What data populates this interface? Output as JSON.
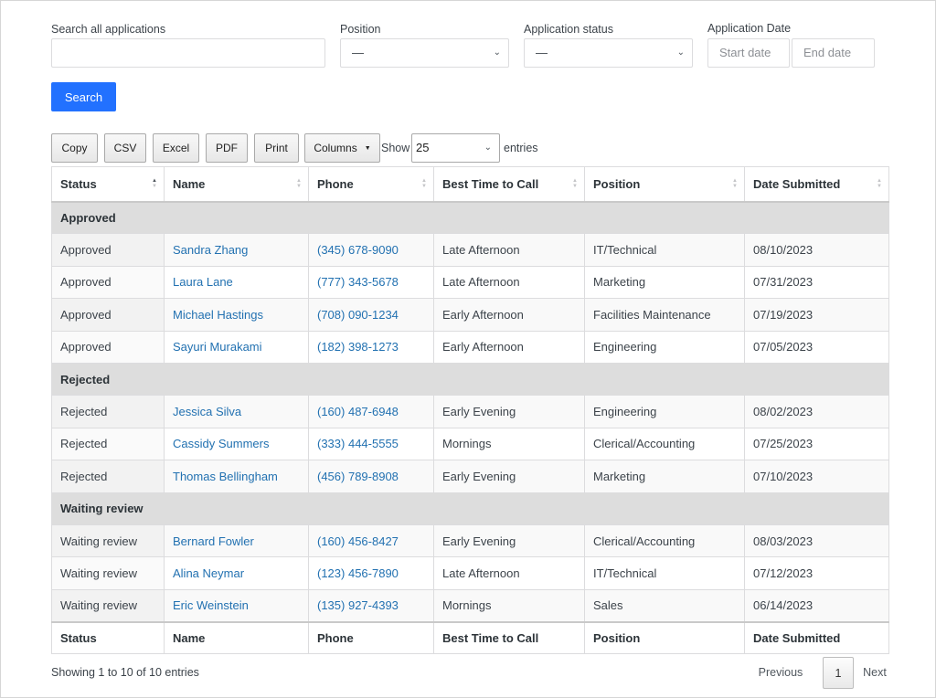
{
  "filters": {
    "search_label": "Search all applications",
    "search_value": "",
    "position_label": "Position",
    "position_value": "—",
    "status_label": "Application status",
    "status_value": "—",
    "date_label": "Application Date",
    "start_placeholder": "Start date",
    "end_placeholder": "End date",
    "search_button": "Search"
  },
  "toolbar": {
    "copy": "Copy",
    "csv": "CSV",
    "excel": "Excel",
    "pdf": "PDF",
    "print": "Print",
    "columns": "Columns",
    "show_label": "Show",
    "page_length": "25",
    "entries_label": "entries"
  },
  "table": {
    "columns": [
      "Status",
      "Name",
      "Phone",
      "Best Time to Call",
      "Position",
      "Date Submitted"
    ],
    "groups": [
      {
        "label": "Approved",
        "rows": [
          [
            "Approved",
            "Sandra Zhang",
            "(345) 678-9090",
            "Late Afternoon",
            "IT/Technical",
            "08/10/2023"
          ],
          [
            "Approved",
            "Laura Lane",
            "(777) 343-5678",
            "Late Afternoon",
            "Marketing",
            "07/31/2023"
          ],
          [
            "Approved",
            "Michael Hastings",
            "(708) 090-1234",
            "Early Afternoon",
            "Facilities Maintenance",
            "07/19/2023"
          ],
          [
            "Approved",
            "Sayuri Murakami",
            "(182) 398-1273",
            "Early Afternoon",
            "Engineering",
            "07/05/2023"
          ]
        ]
      },
      {
        "label": "Rejected",
        "rows": [
          [
            "Rejected",
            "Jessica Silva",
            "(160) 487-6948",
            "Early Evening",
            "Engineering",
            "08/02/2023"
          ],
          [
            "Rejected",
            "Cassidy Summers",
            "(333) 444-5555",
            "Mornings",
            "Clerical/Accounting",
            "07/25/2023"
          ],
          [
            "Rejected",
            "Thomas Bellingham",
            "(456) 789-8908",
            "Early Evening",
            "Marketing",
            "07/10/2023"
          ]
        ]
      },
      {
        "label": "Waiting review",
        "rows": [
          [
            "Waiting review",
            "Bernard Fowler",
            "(160) 456-8427",
            "Early Evening",
            "Clerical/Accounting",
            "08/03/2023"
          ],
          [
            "Waiting review",
            "Alina Neymar",
            "(123) 456-7890",
            "Late Afternoon",
            "IT/Technical",
            "07/12/2023"
          ],
          [
            "Waiting review",
            "Eric Weinstein",
            "(135) 927-4393",
            "Mornings",
            "Sales",
            "06/14/2023"
          ]
        ]
      }
    ]
  },
  "footer": {
    "info": "Showing 1 to 10 of 10 entries",
    "previous": "Previous",
    "current_page": "1",
    "next": "Next"
  },
  "colors": {
    "accent": "#2271ff",
    "link": "#2271b1",
    "group_row": "#dddddd"
  }
}
